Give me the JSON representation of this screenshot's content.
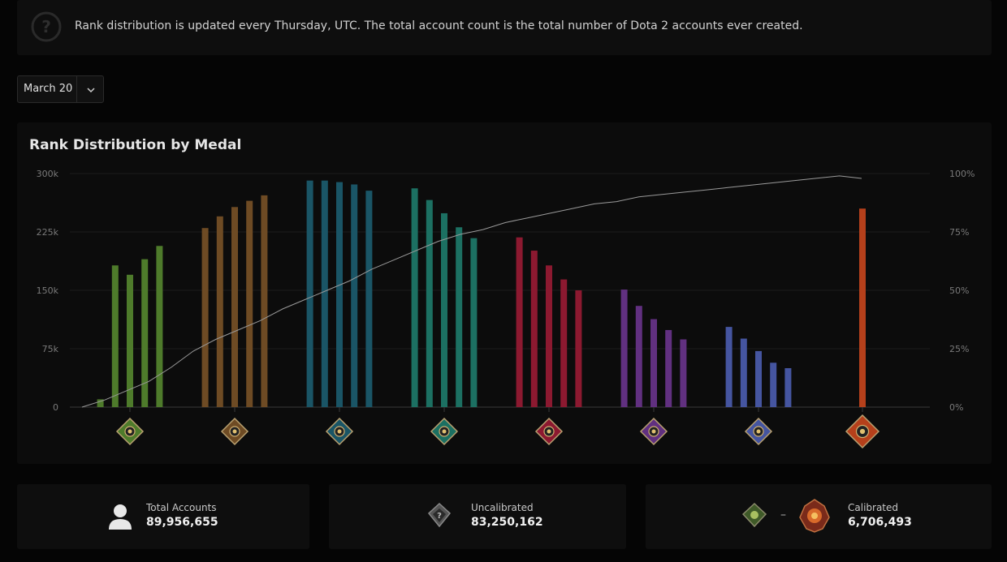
{
  "notice": {
    "icon": "question-circle-icon",
    "text": "Rank distribution is updated every Thursday, UTC. The total account count is the total number of Dota 2 accounts ever created."
  },
  "date_select": {
    "value": "March 20",
    "icon": "chevron-down-icon"
  },
  "chart": {
    "title": "Rank Distribution by Medal"
  },
  "chart_data": {
    "type": "bar",
    "title": "Rank Distribution by Medal",
    "ylim_left": [
      0,
      300000
    ],
    "ylim_right": [
      0,
      100
    ],
    "left_ticks": [
      "0",
      "75k",
      "150k",
      "225k",
      "300k"
    ],
    "right_ticks": [
      "0%",
      "25%",
      "50%",
      "75%",
      "100%"
    ],
    "grid": true,
    "groups": [
      {
        "medal": "herald-medal-icon",
        "color": "#4e7b2b",
        "values": [
          10000,
          182000,
          170000,
          190000,
          207000
        ]
      },
      {
        "medal": "guardian-medal-icon",
        "color": "#6e4b24",
        "values": [
          230000,
          245000,
          257000,
          265000,
          272000
        ]
      },
      {
        "medal": "crusader-medal-icon",
        "color": "#1a5566",
        "values": [
          291000,
          291000,
          289000,
          286000,
          278000
        ]
      },
      {
        "medal": "archon-medal-icon",
        "color": "#1c7062",
        "values": [
          281000,
          266000,
          249000,
          231000,
          217000
        ]
      },
      {
        "medal": "legend-medal-icon",
        "color": "#8c1930",
        "values": [
          218000,
          201000,
          182000,
          164000,
          150000
        ]
      },
      {
        "medal": "ancient-medal-icon",
        "color": "#613080",
        "values": [
          151000,
          130000,
          113000,
          99000,
          87000
        ]
      },
      {
        "medal": "divine-medal-icon",
        "color": "#4555a0",
        "values": [
          103000,
          88000,
          72000,
          57000,
          50000
        ]
      },
      {
        "medal": "immortal-medal-icon",
        "color": "#b5401b",
        "values": [
          255000
        ]
      }
    ],
    "cumulative_line": {
      "color": "#9a9a9a",
      "points_percent": [
        0,
        3,
        7,
        11,
        17,
        24,
        29,
        33,
        37,
        42,
        46,
        50,
        54,
        59,
        63,
        67,
        71,
        74,
        76,
        79,
        81,
        83,
        85,
        87,
        88,
        90,
        91,
        92,
        93,
        94,
        95,
        96,
        97,
        98,
        99,
        100
      ]
    }
  },
  "stats": [
    {
      "icon": "user-icon",
      "label": "Total Accounts",
      "value": "89,956,655"
    },
    {
      "icon": "uncalibrated-medal-icon",
      "label": "Uncalibrated",
      "value": "83,250,162"
    },
    {
      "icon": "herald-to-immortal-medal-icons",
      "label": "Calibrated",
      "value": "6,706,493",
      "separator": "–"
    }
  ]
}
